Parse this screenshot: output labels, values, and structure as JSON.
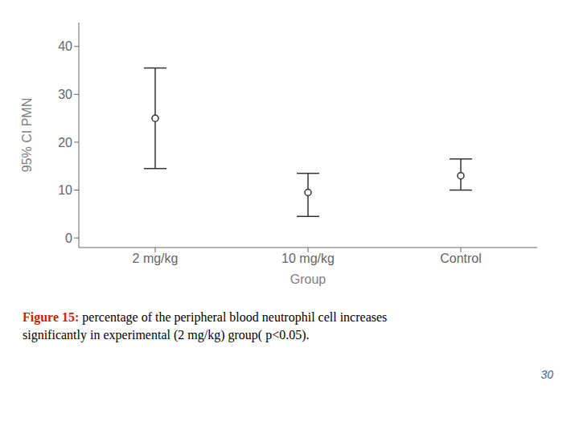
{
  "chart_data": {
    "type": "errorbar",
    "categories": [
      "2 mg/kg",
      "10 mg/kg",
      "Control"
    ],
    "values": [
      25.0,
      9.5,
      13.0
    ],
    "ci_lower": [
      14.5,
      4.5,
      10.0
    ],
    "ci_upper": [
      35.5,
      13.5,
      16.5
    ],
    "xlabel": "Group",
    "ylabel": "95% CI PMN",
    "ylim": [
      -2,
      45
    ],
    "yticks": [
      0,
      10,
      20,
      30,
      40
    ],
    "grid": false,
    "color": "#333333",
    "marker": "circle",
    "annotations": [
      {
        "text": "Figure 15:",
        "color": "#cc2200"
      },
      {
        "text": "percentage of the peripheral blood neutrophil cell increases\nsignificantly in experimental (2 mg/kg) group( p<0.05).",
        "color": "#000000"
      },
      {
        "text": "30",
        "color": "#336699"
      }
    ]
  }
}
